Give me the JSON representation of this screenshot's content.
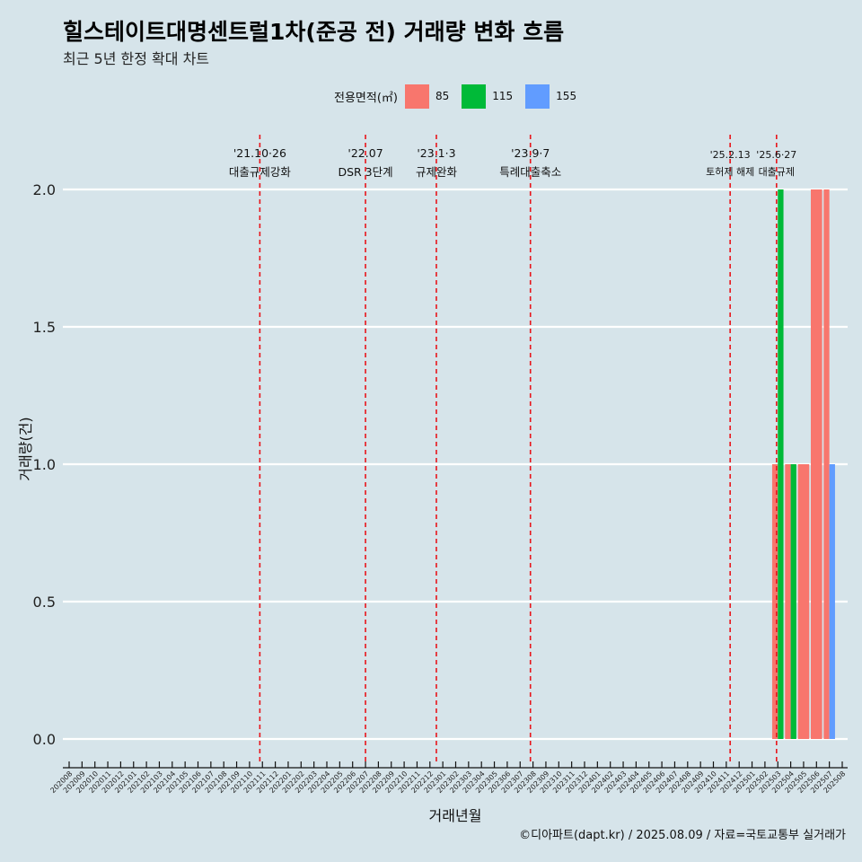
{
  "header": {
    "title": "힐스테이트대명센트럴1차(준공 전) 거래량 변화 흐름",
    "subtitle": "최근 5년 한정 확대 차트"
  },
  "legend": {
    "title": "전용면적(㎡)",
    "items": [
      {
        "label": "85",
        "color": "#f8766d"
      },
      {
        "label": "115",
        "color": "#00ba38"
      },
      {
        "label": "155",
        "color": "#619cff"
      }
    ]
  },
  "caption": "©디아파트(dapt.kr) / 2025.08.09 / 자료=국토교통부 실거래가",
  "chart_data": {
    "type": "bar",
    "xlabel": "거래년월",
    "ylabel": "거래량(건)",
    "ylim": [
      0,
      2
    ],
    "yticks": [
      "0.0",
      "0.5",
      "1.0",
      "1.5",
      "2.0"
    ],
    "grid": true,
    "legend_position": "top",
    "categories": [
      "202008",
      "202009",
      "202010",
      "202011",
      "202012",
      "202101",
      "202102",
      "202103",
      "202104",
      "202105",
      "202106",
      "202107",
      "202108",
      "202109",
      "202110",
      "202111",
      "202112",
      "202201",
      "202202",
      "202203",
      "202204",
      "202205",
      "202206",
      "202207",
      "202208",
      "202209",
      "202210",
      "202211",
      "202212",
      "202301",
      "202302",
      "202303",
      "202304",
      "202305",
      "202306",
      "202307",
      "202308",
      "202309",
      "202310",
      "202311",
      "202312",
      "202401",
      "202402",
      "202403",
      "202404",
      "202405",
      "202406",
      "202407",
      "202408",
      "202409",
      "202410",
      "202411",
      "202412",
      "202501",
      "202502",
      "202503",
      "202504",
      "202505",
      "202506",
      "202507",
      "202508"
    ],
    "bars": [
      {
        "category": "202503",
        "series": "85",
        "value": 1
      },
      {
        "category": "202503",
        "series": "115",
        "value": 2
      },
      {
        "category": "202504",
        "series": "85",
        "value": 1
      },
      {
        "category": "202504",
        "series": "115",
        "value": 1
      },
      {
        "category": "202505",
        "series": "85",
        "value": 1
      },
      {
        "category": "202506",
        "series": "85",
        "value": 2
      },
      {
        "category": "202507",
        "series": "85",
        "value": 2
      },
      {
        "category": "202507",
        "series": "155",
        "value": 1
      }
    ],
    "events": [
      {
        "date": "'21.10·26",
        "label": "대출규제강화",
        "position": 14.8
      },
      {
        "date": "'22.07",
        "label": "DSR 3단계",
        "position": 23
      },
      {
        "date": "'23.1·3",
        "label": "규제완화",
        "position": 28.5
      },
      {
        "date": "'23.9·7",
        "label": "특례대출축소",
        "position": 35.8
      },
      {
        "date": "'25.2.13",
        "label": "토허제 해제",
        "position": 51.3
      },
      {
        "date": "'25.6·27",
        "label": "대출규제",
        "position": 54.9
      }
    ]
  }
}
